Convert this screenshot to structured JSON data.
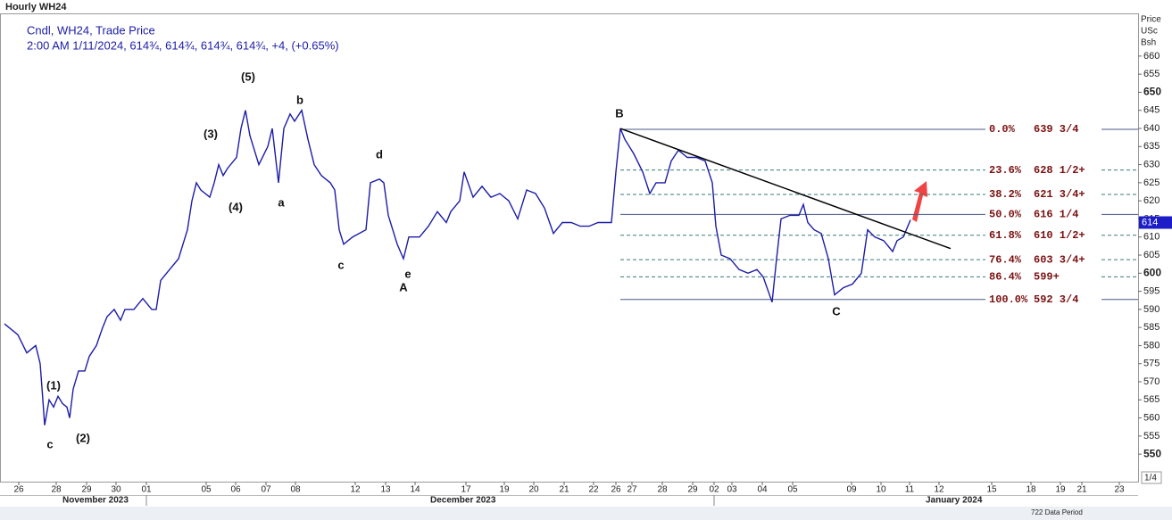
{
  "chart_data": {
    "type": "line",
    "title": "Hourly WH24",
    "legend_lines": [
      "Cndl, WH24, Trade Price",
      "2:00 AM 1/11/2024, 614¾, 614¾, 614¾, 614¾, +4, (+0.65%)"
    ],
    "y_axis_title": [
      "Price",
      "USc",
      "Bsh"
    ],
    "xlim": [
      -0.5,
      127
    ],
    "ylim": [
      542.4,
      671.8
    ],
    "yticks": [
      550,
      555,
      560,
      565,
      570,
      575,
      580,
      585,
      590,
      595,
      600,
      605,
      610,
      615,
      620,
      625,
      630,
      635,
      640,
      645,
      650,
      655,
      660
    ],
    "xticks": [
      {
        "value": 1.6,
        "label": "26"
      },
      {
        "value": 5.8,
        "label": "28"
      },
      {
        "value": 9.2,
        "label": "29"
      },
      {
        "value": 12.5,
        "label": "30"
      },
      {
        "value": 15.9,
        "label": "01"
      },
      {
        "value": 22.6,
        "label": "05"
      },
      {
        "value": 25.9,
        "label": "06"
      },
      {
        "value": 29.3,
        "label": "07"
      },
      {
        "value": 32.6,
        "label": "08"
      },
      {
        "value": 39.3,
        "label": "12"
      },
      {
        "value": 42.7,
        "label": "13"
      },
      {
        "value": 46,
        "label": "14"
      },
      {
        "value": 51.7,
        "label": "17"
      },
      {
        "value": 56,
        "label": "19"
      },
      {
        "value": 59.3,
        "label": "20"
      },
      {
        "value": 62.7,
        "label": "21"
      },
      {
        "value": 66,
        "label": "22"
      },
      {
        "value": 68.5,
        "label": "26"
      },
      {
        "value": 70.3,
        "label": "27"
      },
      {
        "value": 73.7,
        "label": "28"
      },
      {
        "value": 77.1,
        "label": "29"
      },
      {
        "value": 79.5,
        "label": "02"
      },
      {
        "value": 81.5,
        "label": "03"
      },
      {
        "value": 84.9,
        "label": "04"
      },
      {
        "value": 88.3,
        "label": "05"
      },
      {
        "value": 94.9,
        "label": "09"
      },
      {
        "value": 98.2,
        "label": "10"
      },
      {
        "value": 101.4,
        "label": "11"
      },
      {
        "value": 104.7,
        "label": "12"
      },
      {
        "value": 110.6,
        "label": "15"
      },
      {
        "value": 115,
        "label": "18"
      },
      {
        "value": 118.3,
        "label": "19"
      },
      {
        "value": 120.7,
        "label": "21"
      },
      {
        "value": 124.9,
        "label": "23"
      }
    ],
    "months": [
      "November 2023",
      "December 2023",
      "January 2024"
    ],
    "series": [
      {
        "color": "#1c1ca8",
        "x": [
          0,
          1.5,
          2.5,
          3.5,
          4,
          4.3,
          4.5,
          5,
          5.5,
          6,
          6.5,
          7,
          7.3,
          7.7,
          8.3,
          9,
          9.5,
          10.3,
          11,
          11.5,
          12.3,
          13,
          13.5,
          14.5,
          15.5,
          16.5,
          17,
          17.5,
          18.5,
          19.5,
          20,
          20.5,
          21,
          21.5,
          22,
          23,
          23.5,
          24,
          24.5,
          25,
          26,
          26.5,
          27,
          27.5,
          28.5,
          29.5,
          30,
          30.7,
          31.3,
          32,
          32.5,
          33.3,
          34,
          34.7,
          35.5,
          36.5,
          37,
          37.5,
          38,
          39,
          40.5,
          41,
          42,
          42.5,
          43,
          44,
          44.7,
          45.3,
          46.5,
          47.5,
          48.5,
          49.5,
          50,
          51,
          51.5,
          52.5,
          53.5,
          54.5,
          55.5,
          56.5,
          57.5,
          58.5,
          59.5,
          60.5,
          61.5,
          62.5,
          63.5,
          64.5,
          65.5,
          66.5,
          68,
          68.5,
          69,
          69.5,
          70.5,
          71.5,
          72.3,
          73,
          74,
          74.7,
          75.5,
          76.5,
          77.5,
          78.5,
          79.3,
          79.7,
          80.3,
          81.3,
          82.3,
          83.3,
          84.3,
          85,
          86,
          86.5,
          87,
          88,
          89,
          89.5,
          90,
          90.7,
          91.5,
          92.3,
          93,
          94,
          95,
          96,
          96.7,
          97.5,
          98.5,
          99.5,
          100,
          100.7,
          101.5
        ],
        "values": [
          586,
          583,
          578,
          580,
          575,
          565,
          558,
          565,
          563,
          566,
          564,
          563,
          560,
          568,
          573,
          573,
          577,
          580,
          585,
          588,
          590,
          587,
          590,
          590,
          593,
          590,
          590,
          598,
          601,
          604,
          608,
          612,
          620,
          625,
          623,
          621,
          625,
          630,
          627,
          629,
          632,
          640,
          645,
          638,
          630,
          635,
          640,
          625,
          640,
          644,
          642,
          645,
          637,
          630,
          627,
          625,
          623,
          612,
          608,
          610,
          612,
          625,
          626,
          625,
          616,
          608,
          604,
          610,
          610,
          613,
          617,
          614,
          617,
          620,
          628,
          621,
          624,
          621,
          622,
          620,
          615,
          623,
          622,
          618,
          611,
          614,
          614,
          613,
          613,
          614,
          614,
          628,
          640,
          637,
          633,
          628,
          622,
          625,
          625,
          631,
          634,
          632,
          632,
          631,
          625,
          613,
          605,
          604,
          601,
          600,
          601,
          599,
          592,
          604,
          615,
          616,
          616,
          619,
          614,
          612,
          611,
          604,
          594,
          596,
          597,
          600,
          612,
          610,
          609,
          606,
          609,
          610,
          614.75
        ]
      }
    ],
    "price_marker": {
      "value": 614,
      "label": "614"
    },
    "fib_start_x": 69,
    "fibonacci": [
      {
        "label": "0.0%",
        "value": 639.75,
        "value_label": "639 3/4",
        "dashed": false
      },
      {
        "label": "23.6%",
        "value": 628.5,
        "value_label": "628 1/2+",
        "dashed": true
      },
      {
        "label": "38.2%",
        "value": 621.75,
        "value_label": "621 3/4+",
        "dashed": true
      },
      {
        "label": "50.0%",
        "value": 616.25,
        "value_label": "616 1/4",
        "dashed": false
      },
      {
        "label": "61.8%",
        "value": 610.5,
        "value_label": "610 1/2+",
        "dashed": true
      },
      {
        "label": "76.4%",
        "value": 603.75,
        "value_label": "603 3/4+",
        "dashed": true
      },
      {
        "label": "86.4%",
        "value": 599,
        "value_label": "599+",
        "dashed": true
      },
      {
        "label": "100.0%",
        "value": 592.75,
        "value_label": "592 3/4",
        "dashed": false
      }
    ],
    "trendline": {
      "x": [
        69,
        106
      ],
      "y": [
        640,
        606.8
      ],
      "color": "#000000"
    },
    "wave_labels": [
      "(5)",
      "b",
      "(3)",
      "(4)",
      "a",
      "d",
      "c",
      "e",
      "A",
      "B",
      "C",
      "(1)",
      "(2)",
      "c"
    ],
    "page_number": "1/4",
    "footer": "722 Data Period"
  }
}
